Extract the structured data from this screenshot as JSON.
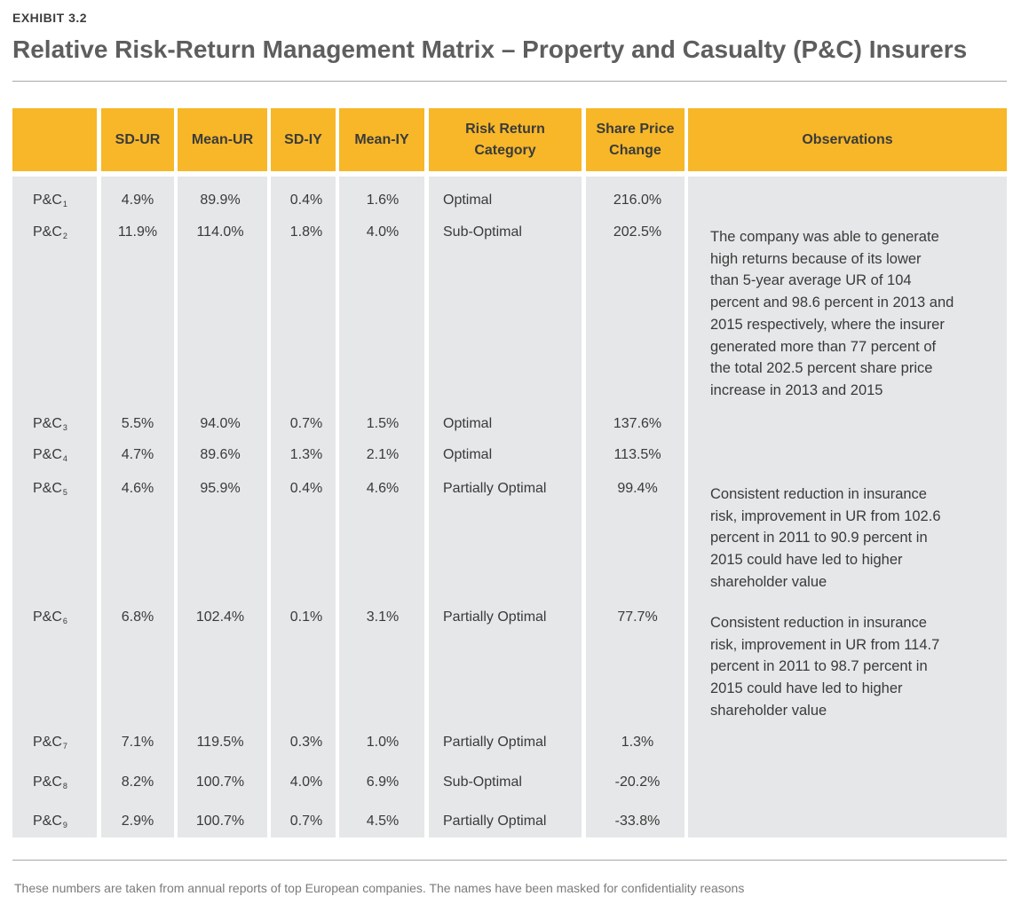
{
  "exhibit_label": "EXHIBIT 3.2",
  "title": "Relative Risk-Return Management Matrix – Property and Casualty (P&C) Insurers",
  "table": {
    "headers": {
      "company": "",
      "sd_ur": "SD-UR",
      "mean_ur": "Mean-UR",
      "sd_iy": "SD-IY",
      "mean_iy": "Mean-IY",
      "category_line1": "Risk Return",
      "category_line2": "Category",
      "share_line1": "Share Price",
      "share_line2": "Change",
      "observations": "Observations"
    },
    "rows": [
      {
        "company": "P&C",
        "sub": "1",
        "sd_ur": "4.9%",
        "mean_ur": "89.9%",
        "sd_iy": "0.4%",
        "mean_iy": "1.6%",
        "category": "Optimal",
        "share": "216.0%"
      },
      {
        "company": "P&C",
        "sub": "2",
        "sd_ur": "11.9%",
        "mean_ur": "114.0%",
        "sd_iy": "1.8%",
        "mean_iy": "4.0%",
        "category": "Sub-Optimal",
        "share": "202.5%"
      },
      {
        "company": "P&C",
        "sub": "3",
        "sd_ur": "5.5%",
        "mean_ur": "94.0%",
        "sd_iy": "0.7%",
        "mean_iy": "1.5%",
        "category": "Optimal",
        "share": "137.6%"
      },
      {
        "company": "P&C",
        "sub": "4",
        "sd_ur": "4.7%",
        "mean_ur": "89.6%",
        "sd_iy": "1.3%",
        "mean_iy": "2.1%",
        "category": "Optimal",
        "share": "113.5%"
      },
      {
        "company": "P&C",
        "sub": "5",
        "sd_ur": "4.6%",
        "mean_ur": "95.9%",
        "sd_iy": "0.4%",
        "mean_iy": "4.6%",
        "category": "Partially Optimal",
        "share": "99.4%"
      },
      {
        "company": "P&C",
        "sub": "6",
        "sd_ur": "6.8%",
        "mean_ur": "102.4%",
        "sd_iy": "0.1%",
        "mean_iy": "3.1%",
        "category": "Partially Optimal",
        "share": "77.7%"
      },
      {
        "company": "P&C",
        "sub": "7",
        "sd_ur": "7.1%",
        "mean_ur": "119.5%",
        "sd_iy": "0.3%",
        "mean_iy": "1.0%",
        "category": "Partially Optimal",
        "share": "1.3%"
      },
      {
        "company": "P&C",
        "sub": "8",
        "sd_ur": "8.2%",
        "mean_ur": "100.7%",
        "sd_iy": "4.0%",
        "mean_iy": "6.9%",
        "category": "Sub-Optimal",
        "share": "-20.2%"
      },
      {
        "company": "P&C",
        "sub": "9",
        "sd_ur": "2.9%",
        "mean_ur": "100.7%",
        "sd_iy": "0.7%",
        "mean_iy": "4.5%",
        "category": "Partially Optimal",
        "share": "-33.8%"
      }
    ],
    "observations": [
      {
        "row": "P&C2",
        "lines": [
          "The company was able to generate",
          "high returns because of its lower",
          "than 5-year average UR of 104",
          "percent and 98.6 percent in 2013 and",
          "2015 respectively, where the insurer",
          "generated more than 77 percent of",
          "the total 202.5 percent share price",
          "increase in 2013 and 2015"
        ]
      },
      {
        "row": "P&C5",
        "lines": [
          "Consistent reduction in insurance",
          "risk, improvement in UR from 102.6",
          "percent in 2011 to 90.9 percent in",
          "2015 could have led to higher",
          "shareholder value"
        ]
      },
      {
        "row": "P&C6",
        "lines": [
          "Consistent reduction in insurance",
          "risk, improvement in UR from 114.7",
          "percent in 2011 to 98.7 percent in",
          "2015 could have led to higher",
          "shareholder value"
        ]
      }
    ]
  },
  "footnote": "These numbers are taken from annual reports of top European companies. The names have been masked for confidentiality reasons",
  "colors": {
    "header": "#f7b728",
    "body": "#e5e7e8",
    "title": "#5e5e5e"
  }
}
